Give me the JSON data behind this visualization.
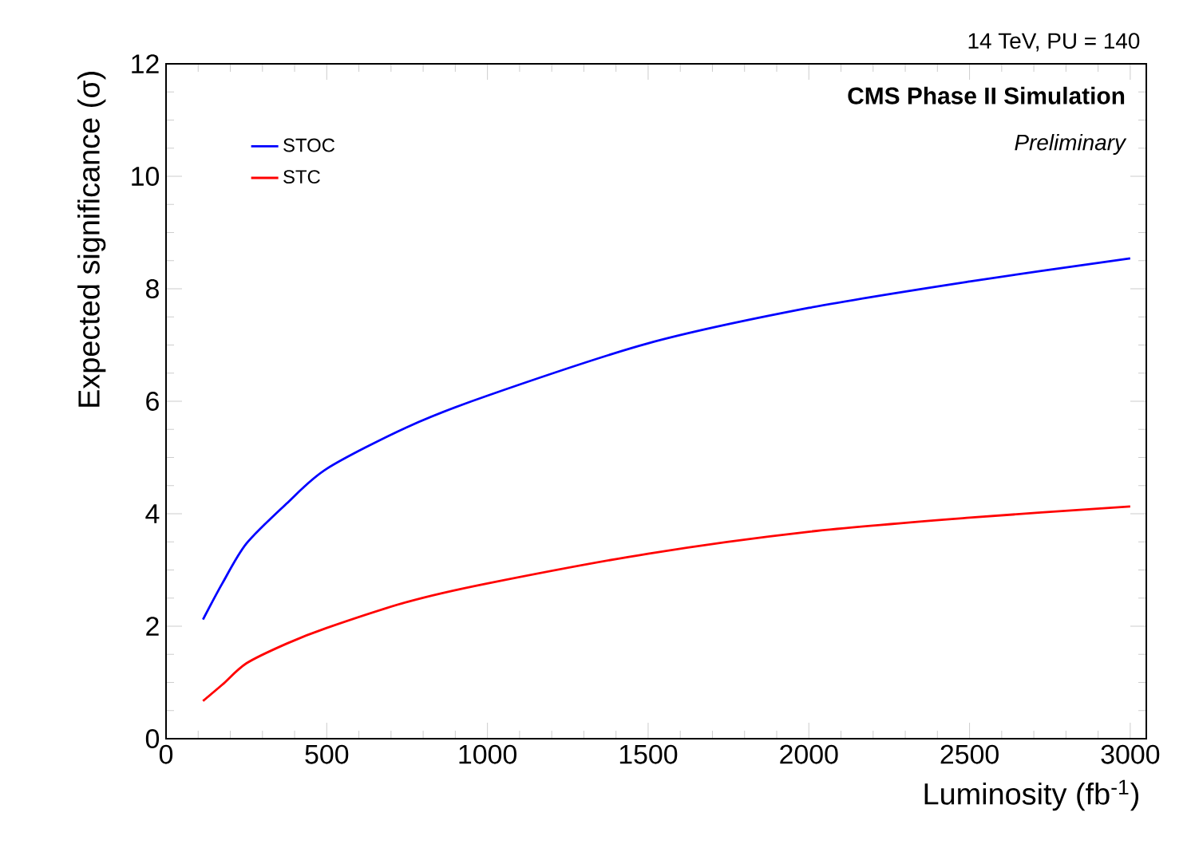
{
  "chart_data": {
    "type": "line",
    "title": "14 TeV, PU = 140",
    "xlabel": "Luminosity (fb$^{-1}$)",
    "ylabel": "Expected significance (σ)",
    "annotations": [
      "CMS Phase II Simulation",
      "Preliminary"
    ],
    "xlim": [
      0,
      3050
    ],
    "ylim": [
      0,
      12
    ],
    "xticks": [
      0,
      500,
      1000,
      1500,
      2000,
      2500,
      3000
    ],
    "yticks": [
      0,
      2,
      4,
      6,
      8,
      10,
      12
    ],
    "legend": "top left",
    "grid": false,
    "marker": "none",
    "line_style": "solid",
    "series": [
      {
        "name": "STOC",
        "color": "#0000ff",
        "x": [
          115,
          175,
          250,
          375,
          500,
          750,
          1000,
          1500,
          2000,
          2500,
          3000
        ],
        "values": [
          2.12,
          2.76,
          3.47,
          4.18,
          4.8,
          5.54,
          6.1,
          7.03,
          7.66,
          8.13,
          8.54
        ]
      },
      {
        "name": "STC",
        "color": "#ff0000",
        "x": [
          115,
          175,
          250,
          375,
          500,
          750,
          1000,
          1500,
          2000,
          2500,
          3000
        ],
        "values": [
          0.67,
          0.96,
          1.34,
          1.69,
          1.97,
          2.43,
          2.76,
          3.29,
          3.68,
          3.93,
          4.13
        ]
      }
    ]
  }
}
